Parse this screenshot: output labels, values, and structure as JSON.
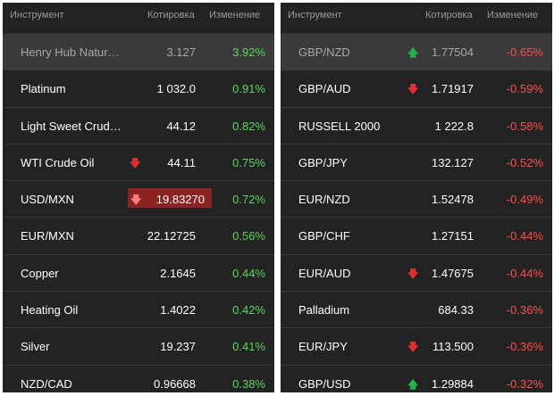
{
  "left": {
    "headers": {
      "instrument": "Инструмент",
      "quote": "Котировка",
      "change": "Изменение"
    },
    "rows": [
      {
        "name": "Henry Hub Natur…",
        "quote": "3.127",
        "change": "3.92%",
        "arrow": ""
      },
      {
        "name": "Platinum",
        "quote": "1 032.0",
        "change": "0.91%",
        "arrow": ""
      },
      {
        "name": "Light Sweet Crud…",
        "quote": "44.12",
        "change": "0.82%",
        "arrow": ""
      },
      {
        "name": "WTI Crude Oil",
        "quote": "44.11",
        "change": "0.75%",
        "arrow": "down"
      },
      {
        "name": "USD/MXN",
        "quote": "19.83270",
        "change": "0.72%",
        "arrow": "down"
      },
      {
        "name": "EUR/MXN",
        "quote": "22.12725",
        "change": "0.56%",
        "arrow": ""
      },
      {
        "name": "Copper",
        "quote": "2.1645",
        "change": "0.44%",
        "arrow": ""
      },
      {
        "name": "Heating Oil",
        "quote": "1.4022",
        "change": "0.42%",
        "arrow": ""
      },
      {
        "name": "Silver",
        "quote": "19.237",
        "change": "0.41%",
        "arrow": ""
      },
      {
        "name": "NZD/CAD",
        "quote": "0.96668",
        "change": "0.38%",
        "arrow": ""
      }
    ]
  },
  "right": {
    "headers": {
      "instrument": "Инструмент",
      "quote": "Котировка",
      "change": "Изменение"
    },
    "rows": [
      {
        "name": "GBP/NZD",
        "quote": "1.77504",
        "change": "-0.65%",
        "arrow": "up"
      },
      {
        "name": "GBP/AUD",
        "quote": "1.71917",
        "change": "-0.59%",
        "arrow": "down"
      },
      {
        "name": "RUSSELL 2000",
        "quote": "1 222.8",
        "change": "-0.58%",
        "arrow": ""
      },
      {
        "name": "GBP/JPY",
        "quote": "132.127",
        "change": "-0.52%",
        "arrow": ""
      },
      {
        "name": "EUR/NZD",
        "quote": "1.52478",
        "change": "-0.49%",
        "arrow": ""
      },
      {
        "name": "GBP/CHF",
        "quote": "1.27151",
        "change": "-0.44%",
        "arrow": ""
      },
      {
        "name": "EUR/AUD",
        "quote": "1.47675",
        "change": "-0.44%",
        "arrow": "down"
      },
      {
        "name": "Palladium",
        "quote": "684.33",
        "change": "-0.36%",
        "arrow": ""
      },
      {
        "name": "EUR/JPY",
        "quote": "113.500",
        "change": "-0.36%",
        "arrow": "down"
      },
      {
        "name": "GBP/USD",
        "quote": "1.29884",
        "change": "-0.32%",
        "arrow": "up"
      }
    ]
  },
  "icons": {
    "up": "arrow-up-icon",
    "down": "arrow-down-icon"
  },
  "colors": {
    "positive": "#5cd65c",
    "negative": "#ff4d4d",
    "up_arrow": "#22b14c",
    "down_arrow": "#e03030",
    "flash": "#8c2323",
    "panel_bg": "#232323"
  }
}
